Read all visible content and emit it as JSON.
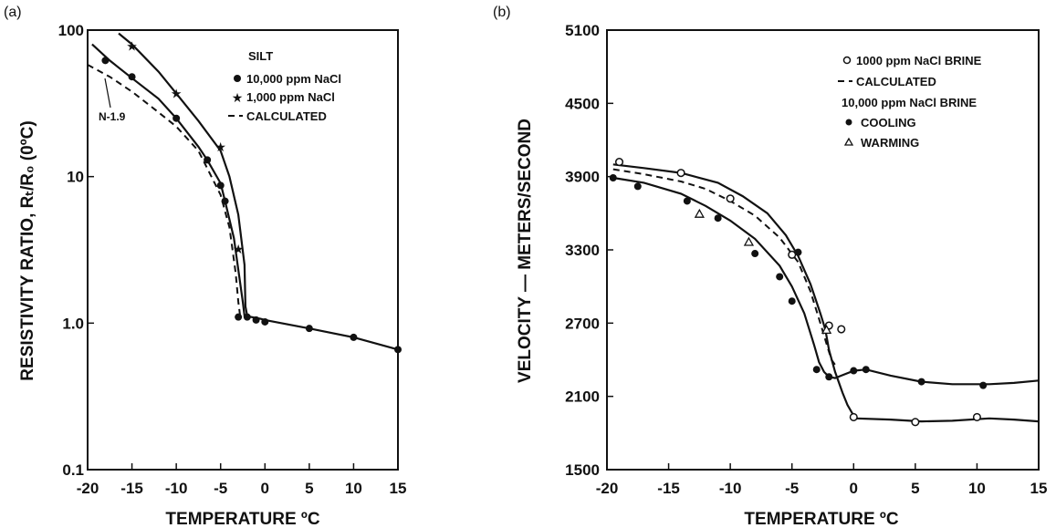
{
  "chart_data": [
    {
      "panel": "(a)",
      "type": "line",
      "xlabel": "TEMPERATURE ºC",
      "ylabel": "RESISTIVITY RATIO, Rₜ/R₀ (0ºC)",
      "yscale": "log",
      "xlim": [
        -20,
        15
      ],
      "ylim": [
        0.1,
        100
      ],
      "xticks": [
        "-20",
        "-15",
        "-10",
        "-5",
        "0",
        "5",
        "10",
        "15"
      ],
      "yticks": [
        "100",
        "10",
        "1.0",
        "0.1"
      ],
      "legend_title": "SILT",
      "legend_position": "top-right",
      "annotation": "N-1.9",
      "series": [
        {
          "name": "10,000 ppm NaCl",
          "marker": "circle",
          "x": [
            -19.5,
            -17.5,
            -15,
            -12,
            -10,
            -7.5,
            -6.5,
            -5,
            -4.5,
            -3.5,
            -2.5,
            -2.3,
            -1.5,
            -0.5,
            0,
            5,
            10,
            15
          ],
          "y": [
            80,
            62,
            47,
            34,
            25,
            16,
            13,
            9,
            6.8,
            3.8,
            1.4,
            1.12,
            1.1,
            1.07,
            1.05,
            0.92,
            0.8,
            0.66
          ],
          "points_x": [
            -18,
            -15,
            -10,
            -6.5,
            -5,
            -4.5,
            -3,
            -2,
            -1,
            0,
            5,
            10,
            15
          ],
          "points_y": [
            62,
            48,
            25,
            13,
            8.7,
            6.8,
            1.1,
            1.1,
            1.05,
            1.02,
            0.92,
            0.8,
            0.66
          ]
        },
        {
          "name": "1,000 ppm NaCl",
          "marker": "star",
          "x": [
            -16.5,
            -15,
            -12,
            -10,
            -7.5,
            -5,
            -4,
            -3,
            -2.3,
            -2.2,
            -2.0
          ],
          "y": [
            95,
            80,
            52,
            37,
            24,
            15,
            10,
            5.5,
            2.5,
            1.3,
            1.12
          ],
          "points_x": [
            -15,
            -10,
            -5,
            -3
          ],
          "points_y": [
            78,
            37,
            16,
            3.2
          ]
        },
        {
          "name": "CALCULATED",
          "marker": "none",
          "x": [
            -20,
            -17.5,
            -15,
            -12.5,
            -10,
            -7.5,
            -5,
            -4,
            -3.3,
            -3.0,
            -2.8
          ],
          "y": [
            58,
            48,
            38,
            29,
            22,
            15,
            7.5,
            4.5,
            2.2,
            1.4,
            1.12
          ]
        }
      ]
    },
    {
      "panel": "(b)",
      "type": "line",
      "xlabel": "TEMPERATURE ºC",
      "ylabel": "VELOCITY — METERS/SECOND",
      "xlim": [
        -20,
        15
      ],
      "ylim": [
        1500,
        5100
      ],
      "xticks": [
        "-20",
        "-15",
        "-10",
        "-5",
        "0",
        "5",
        "10",
        "15"
      ],
      "yticks": [
        "5100",
        "4500",
        "3900",
        "3300",
        "2700",
        "2100",
        "1500"
      ],
      "legend_position": "top-right",
      "legend_subtitle": "10,000 ppm NaCl BRINE",
      "series": [
        {
          "name": "1000 ppm NaCl BRINE",
          "marker": "open-circle",
          "x": [
            -19.5,
            -17,
            -14,
            -11,
            -9,
            -7,
            -5.5,
            -4.5,
            -3.5,
            -2.7,
            -2.3,
            -2,
            -1.5,
            -0.9,
            -0.5,
            -0.1,
            0.2,
            3,
            5.5,
            8,
            11,
            13,
            15
          ],
          "y": [
            4000,
            3970,
            3930,
            3850,
            3740,
            3600,
            3420,
            3250,
            3020,
            2780,
            2650,
            2480,
            2300,
            2130,
            2030,
            1960,
            1920,
            1910,
            1895,
            1900,
            1920,
            1910,
            1895
          ],
          "points_x": [
            -19,
            -14,
            -10,
            -5,
            -2,
            -1,
            0,
            5,
            10
          ],
          "points_y": [
            4020,
            3930,
            3720,
            3260,
            2680,
            2650,
            1930,
            1890,
            1930
          ]
        },
        {
          "name": "CALCULATED",
          "marker": "none",
          "x": [
            -19.5,
            -17,
            -14,
            -12,
            -10,
            -8,
            -6,
            -4.5,
            -3.5,
            -2.7,
            -2.2,
            -1.8,
            -1.3
          ],
          "y": [
            3960,
            3920,
            3860,
            3800,
            3700,
            3580,
            3400,
            3200,
            2960,
            2700,
            2530,
            2400,
            2330
          ]
        },
        {
          "name": "COOLING",
          "marker": "filled-circle",
          "x": [
            -19.5,
            -17,
            -14,
            -12,
            -10,
            -8,
            -6,
            -5,
            -4,
            -3.2,
            -2.8,
            -2.4,
            -2,
            -1.5,
            -1,
            0,
            1,
            3,
            5.5,
            8,
            11,
            13,
            15
          ],
          "y": [
            3890,
            3850,
            3760,
            3660,
            3540,
            3390,
            3170,
            3000,
            2780,
            2520,
            2380,
            2300,
            2260,
            2250,
            2270,
            2310,
            2320,
            2270,
            2220,
            2200,
            2200,
            2210,
            2230
          ],
          "points_x": [
            -19.5,
            -17.5,
            -13.5,
            -11,
            -8,
            -6,
            -5,
            -4.5,
            -3,
            -2,
            0,
            1,
            5.5,
            10.5
          ],
          "points_y": [
            3890,
            3820,
            3700,
            3560,
            3270,
            3080,
            2880,
            3280,
            2320,
            2260,
            2310,
            2320,
            2220,
            2190
          ]
        },
        {
          "name": "WARMING",
          "marker": "triangle",
          "points_x": [
            -12.5,
            -8.5,
            -2.2
          ],
          "points_y": [
            3590,
            3360,
            2640
          ]
        }
      ]
    }
  ]
}
